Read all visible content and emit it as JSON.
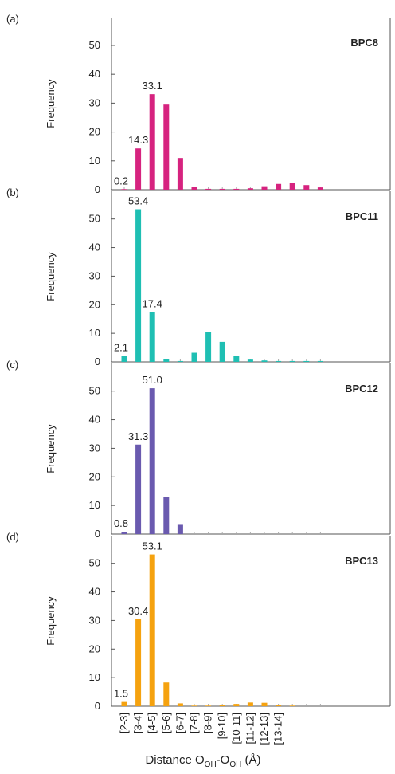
{
  "chart_data": [
    {
      "type": "bar",
      "panel": "(a)",
      "ylabel": "Frequency",
      "name": "BPC8",
      "color": "#d6237f",
      "values": [
        0.2,
        14.3,
        33.1,
        29.5,
        11,
        1,
        0.3,
        0.3,
        0.3,
        0.5,
        1.2,
        2,
        2.3,
        1.6,
        0.8
      ],
      "value_labels": [
        "0.2",
        "14.3",
        "33.1",
        null,
        null,
        null,
        null,
        null,
        null,
        null,
        null,
        null,
        null,
        null,
        null
      ],
      "ylim": [
        0,
        58
      ],
      "yticks": [
        0,
        10,
        20,
        30,
        40,
        50
      ]
    },
    {
      "type": "bar",
      "panel": "(b)",
      "ylabel": "Frequency",
      "name": "BPC11",
      "color": "#1fbfb3",
      "values": [
        2.1,
        53.4,
        17.4,
        1,
        0.3,
        3.2,
        10.5,
        7,
        2,
        0.8,
        0.5,
        0.3,
        0.3,
        0.3,
        0.3
      ],
      "value_labels": [
        "2.1",
        "53.4",
        "17.4",
        null,
        null,
        null,
        null,
        null,
        null,
        null,
        null,
        null,
        null,
        null,
        null
      ],
      "ylim": [
        0,
        58
      ],
      "yticks": [
        0,
        10,
        20,
        30,
        40,
        50
      ]
    },
    {
      "type": "bar",
      "panel": "(c)",
      "ylabel": "Frequency",
      "name": "BPC12",
      "color": "#6a5aaf",
      "values": [
        0.8,
        31.3,
        51.0,
        13,
        3.5,
        0,
        0,
        0,
        0,
        0,
        0,
        0,
        0,
        0,
        0
      ],
      "value_labels": [
        "0.8",
        "31.3",
        "51.0",
        null,
        null,
        null,
        null,
        null,
        null,
        null,
        null,
        null,
        null,
        null,
        null
      ],
      "ylim": [
        0,
        58
      ],
      "yticks": [
        0,
        10,
        20,
        30,
        40,
        50
      ]
    },
    {
      "type": "bar",
      "panel": "(d)",
      "ylabel": "Frequency",
      "name": "BPC13",
      "color": "#f5a20f",
      "values": [
        1.5,
        30.4,
        53.1,
        8.3,
        1,
        0.2,
        0.2,
        0.3,
        0.8,
        1.3,
        1.2,
        0.5,
        0.2,
        0,
        0
      ],
      "value_labels": [
        "1.5",
        "30.4",
        "53.1",
        null,
        null,
        null,
        null,
        null,
        null,
        null,
        null,
        null,
        null,
        null,
        null
      ],
      "ylim": [
        0,
        58
      ],
      "yticks": [
        0,
        10,
        20,
        30,
        40,
        50
      ],
      "categories": [
        "[2-3]",
        "[3-4]",
        "[4-5]",
        "[5-6]",
        "[6-7]",
        "[7-8]",
        "[8-9]",
        "[9-10]",
        "[10-11]",
        "[11-12]",
        "[12-13]",
        "[13-14]",
        null,
        null,
        null
      ],
      "xlabel": [
        "Distance O",
        "OH",
        "-O",
        "OH",
        " (Å)"
      ]
    }
  ]
}
